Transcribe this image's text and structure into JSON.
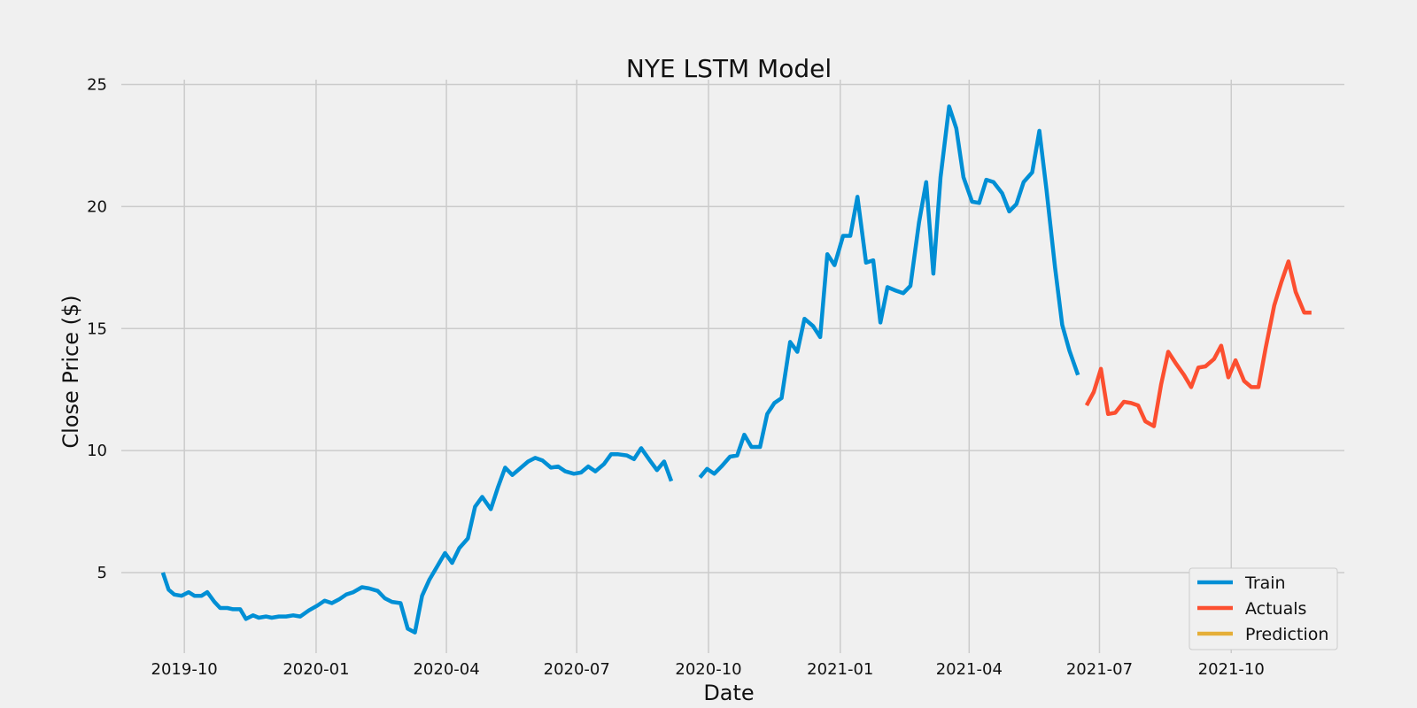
{
  "chart_data": {
    "type": "line",
    "title": "NYE LSTM Model",
    "xlabel": "Date",
    "ylabel": "Close Price ($)",
    "x_scale": "date",
    "xlim": [
      "2019-08-18",
      "2021-12-19"
    ],
    "ylim": [
      1.7,
      25.2
    ],
    "x_ticks": [
      "2019-10",
      "2020-01",
      "2020-04",
      "2020-07",
      "2020-10",
      "2021-01",
      "2021-04",
      "2021-07",
      "2021-10"
    ],
    "y_ticks": [
      5,
      10,
      15,
      20,
      25
    ],
    "grid": true,
    "legend_position": "bottom-right",
    "colors": {
      "background": "#f0f0f0",
      "grid": "#cbcbcb",
      "train": "#008fd5",
      "actuals": "#fc4f30",
      "prediction": "#e5ae38"
    },
    "series": [
      {
        "name": "Train",
        "color": "#008fd5",
        "points": [
          [
            "2019-09-16",
            5.0
          ],
          [
            "2019-09-20",
            4.3
          ],
          [
            "2019-09-24",
            4.1
          ],
          [
            "2019-09-29",
            4.05
          ],
          [
            "2019-10-04",
            4.2
          ],
          [
            "2019-10-08",
            4.05
          ],
          [
            "2019-10-13",
            4.05
          ],
          [
            "2019-10-17",
            4.2
          ],
          [
            "2019-10-22",
            3.8
          ],
          [
            "2019-10-26",
            3.55
          ],
          [
            "2019-10-31",
            3.55
          ],
          [
            "2019-11-04",
            3.5
          ],
          [
            "2019-11-09",
            3.5
          ],
          [
            "2019-11-13",
            3.1
          ],
          [
            "2019-11-18",
            3.25
          ],
          [
            "2019-11-22",
            3.15
          ],
          [
            "2019-11-27",
            3.2
          ],
          [
            "2019-12-01",
            3.15
          ],
          [
            "2019-12-06",
            3.2
          ],
          [
            "2019-12-11",
            3.2
          ],
          [
            "2019-12-16",
            3.25
          ],
          [
            "2019-12-21",
            3.2
          ],
          [
            "2019-12-27",
            3.45
          ],
          [
            "2020-01-02",
            3.65
          ],
          [
            "2020-01-07",
            3.85
          ],
          [
            "2020-01-12",
            3.75
          ],
          [
            "2020-01-17",
            3.9
          ],
          [
            "2020-01-22",
            4.1
          ],
          [
            "2020-01-27",
            4.2
          ],
          [
            "2020-02-02",
            4.4
          ],
          [
            "2020-02-07",
            4.35
          ],
          [
            "2020-02-13",
            4.25
          ],
          [
            "2020-02-18",
            3.95
          ],
          [
            "2020-02-23",
            3.8
          ],
          [
            "2020-02-29",
            3.75
          ],
          [
            "2020-03-05",
            2.7
          ],
          [
            "2020-03-10",
            2.55
          ],
          [
            "2020-03-15",
            4.05
          ],
          [
            "2020-03-20",
            4.7
          ],
          [
            "2020-03-26",
            5.3
          ],
          [
            "2020-03-31",
            5.8
          ],
          [
            "2020-04-05",
            5.4
          ],
          [
            "2020-04-10",
            6.0
          ],
          [
            "2020-04-16",
            6.4
          ],
          [
            "2020-04-21",
            7.7
          ],
          [
            "2020-04-26",
            8.1
          ],
          [
            "2020-05-02",
            7.6
          ],
          [
            "2020-05-07",
            8.5
          ],
          [
            "2020-05-12",
            9.3
          ],
          [
            "2020-05-17",
            9.0
          ],
          [
            "2020-05-23",
            9.3
          ],
          [
            "2020-05-28",
            9.55
          ],
          [
            "2020-06-02",
            9.7
          ],
          [
            "2020-06-07",
            9.6
          ],
          [
            "2020-06-13",
            9.3
          ],
          [
            "2020-06-18",
            9.35
          ],
          [
            "2020-06-23",
            9.15
          ],
          [
            "2020-06-29",
            9.05
          ],
          [
            "2020-07-04",
            9.1
          ],
          [
            "2020-07-09",
            9.35
          ],
          [
            "2020-07-14",
            9.15
          ],
          [
            "2020-07-20",
            9.45
          ],
          [
            "2020-07-25",
            9.85
          ],
          [
            "2020-07-30",
            9.85
          ],
          [
            "2020-08-05",
            9.8
          ],
          [
            "2020-08-10",
            9.65
          ],
          [
            "2020-08-15",
            10.1
          ],
          [
            "2020-08-21",
            9.6
          ],
          [
            "2020-08-26",
            9.2
          ],
          [
            "2020-08-31",
            9.55
          ],
          [
            "2020-09-05",
            8.75
          ],
          null,
          [
            "2020-09-25",
            8.9
          ],
          [
            "2020-09-30",
            9.25
          ],
          [
            "2020-10-05",
            9.05
          ],
          [
            "2020-10-10",
            9.35
          ],
          [
            "2020-10-16",
            9.75
          ],
          [
            "2020-10-21",
            9.8
          ],
          [
            "2020-10-26",
            10.65
          ],
          [
            "2020-10-31",
            10.15
          ],
          [
            "2020-11-06",
            10.15
          ],
          [
            "2020-11-11",
            11.5
          ],
          [
            "2020-11-16",
            11.95
          ],
          [
            "2020-11-21",
            12.15
          ],
          [
            "2020-11-27",
            14.45
          ],
          [
            "2020-12-02",
            14.05
          ],
          [
            "2020-12-07",
            15.4
          ],
          [
            "2020-12-13",
            15.1
          ],
          [
            "2020-12-18",
            14.65
          ],
          [
            "2020-12-23",
            18.05
          ],
          [
            "2020-12-28",
            17.6
          ],
          [
            "2021-01-03",
            18.8
          ],
          [
            "2021-01-08",
            18.8
          ],
          [
            "2021-01-13",
            20.4
          ],
          [
            "2021-01-19",
            17.7
          ],
          [
            "2021-01-24",
            17.8
          ],
          [
            "2021-01-29",
            15.25
          ],
          [
            "2021-02-03",
            16.7
          ],
          [
            "2021-02-09",
            16.55
          ],
          [
            "2021-02-14",
            16.45
          ],
          [
            "2021-02-19",
            16.75
          ],
          [
            "2021-02-25",
            19.35
          ],
          [
            "2021-03-02",
            21.0
          ],
          [
            "2021-03-07",
            17.25
          ],
          [
            "2021-03-12",
            21.2
          ],
          [
            "2021-03-18",
            24.1
          ],
          [
            "2021-03-23",
            23.2
          ],
          [
            "2021-03-28",
            21.2
          ],
          [
            "2021-04-03",
            20.2
          ],
          [
            "2021-04-08",
            20.15
          ],
          [
            "2021-04-13",
            21.1
          ],
          [
            "2021-04-18",
            21.0
          ],
          [
            "2021-04-24",
            20.55
          ],
          [
            "2021-04-29",
            19.8
          ],
          [
            "2021-05-04",
            20.1
          ],
          [
            "2021-05-09",
            21.0
          ],
          [
            "2021-05-15",
            21.4
          ],
          [
            "2021-05-20",
            23.1
          ],
          [
            "2021-05-25",
            20.7
          ],
          [
            "2021-05-31",
            17.5
          ],
          [
            "2021-06-05",
            15.15
          ],
          [
            "2021-06-10",
            14.1
          ],
          [
            "2021-06-16",
            13.1
          ]
        ]
      },
      {
        "name": "Actuals",
        "color": "#fc4f30",
        "points": [
          [
            "2021-06-22",
            11.85
          ],
          [
            "2021-06-27",
            12.4
          ],
          [
            "2021-07-02",
            13.35
          ],
          [
            "2021-07-07",
            11.5
          ],
          [
            "2021-07-12",
            11.55
          ],
          [
            "2021-07-18",
            12.0
          ],
          [
            "2021-07-23",
            11.95
          ],
          [
            "2021-07-28",
            11.85
          ],
          [
            "2021-08-02",
            11.2
          ],
          [
            "2021-08-08",
            11.0
          ],
          [
            "2021-08-13",
            12.7
          ],
          [
            "2021-08-18",
            14.05
          ],
          [
            "2021-08-23",
            13.6
          ],
          [
            "2021-08-29",
            13.1
          ],
          [
            "2021-09-03",
            12.6
          ],
          [
            "2021-09-08",
            13.4
          ],
          [
            "2021-09-13",
            13.45
          ],
          [
            "2021-09-19",
            13.75
          ],
          [
            "2021-09-24",
            14.3
          ],
          [
            "2021-09-29",
            13.0
          ],
          [
            "2021-10-04",
            13.7
          ],
          [
            "2021-10-10",
            12.85
          ],
          [
            "2021-10-15",
            12.6
          ],
          [
            "2021-10-20",
            12.6
          ],
          [
            "2021-10-25",
            14.2
          ],
          [
            "2021-10-31",
            15.95
          ],
          [
            "2021-11-05",
            16.9
          ],
          [
            "2021-11-10",
            17.75
          ],
          [
            "2021-11-15",
            16.5
          ],
          [
            "2021-11-21",
            15.65
          ],
          [
            "2021-11-26",
            15.65
          ]
        ]
      },
      {
        "name": "Prediction",
        "color": "#e5ae38",
        "points": []
      }
    ]
  }
}
